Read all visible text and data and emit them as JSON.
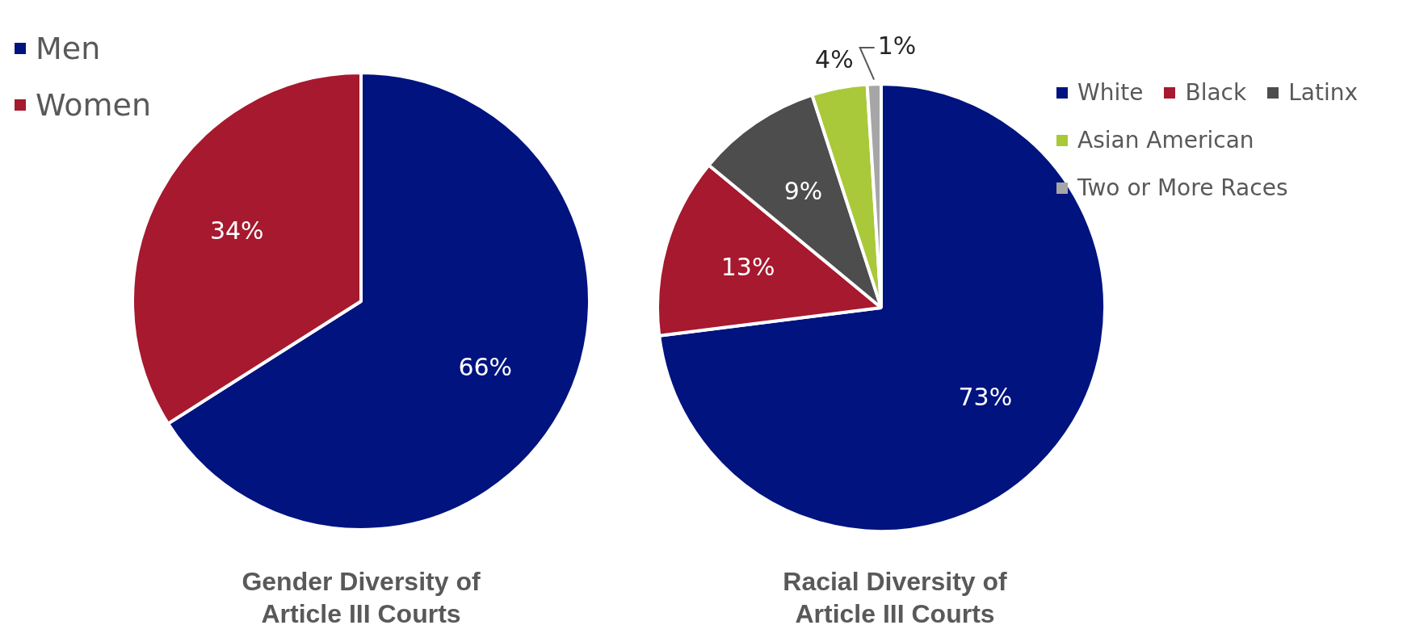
{
  "chart_data": [
    {
      "type": "pie",
      "title": "Gender Diversity of Article III Courts",
      "categories": [
        "Men",
        "Women"
      ],
      "values": [
        66,
        34
      ],
      "colors": [
        "#00137f",
        "#a6192e"
      ],
      "value_labels": [
        "66%",
        "34%"
      ],
      "legend": "top left"
    },
    {
      "type": "pie",
      "title": "Racial Diversity of Article III Courts",
      "categories": [
        "White",
        "Black",
        "Latinx",
        "Asian American",
        "Two or More Races"
      ],
      "values": [
        73,
        13,
        9,
        4,
        1
      ],
      "colors": [
        "#00137f",
        "#a6192e",
        "#4d4d4d",
        "#a9c93a",
        "#a6a6a6"
      ],
      "value_labels": [
        "73%",
        "13%",
        "9%",
        "4%",
        "1%"
      ],
      "legend": "top right"
    }
  ]
}
